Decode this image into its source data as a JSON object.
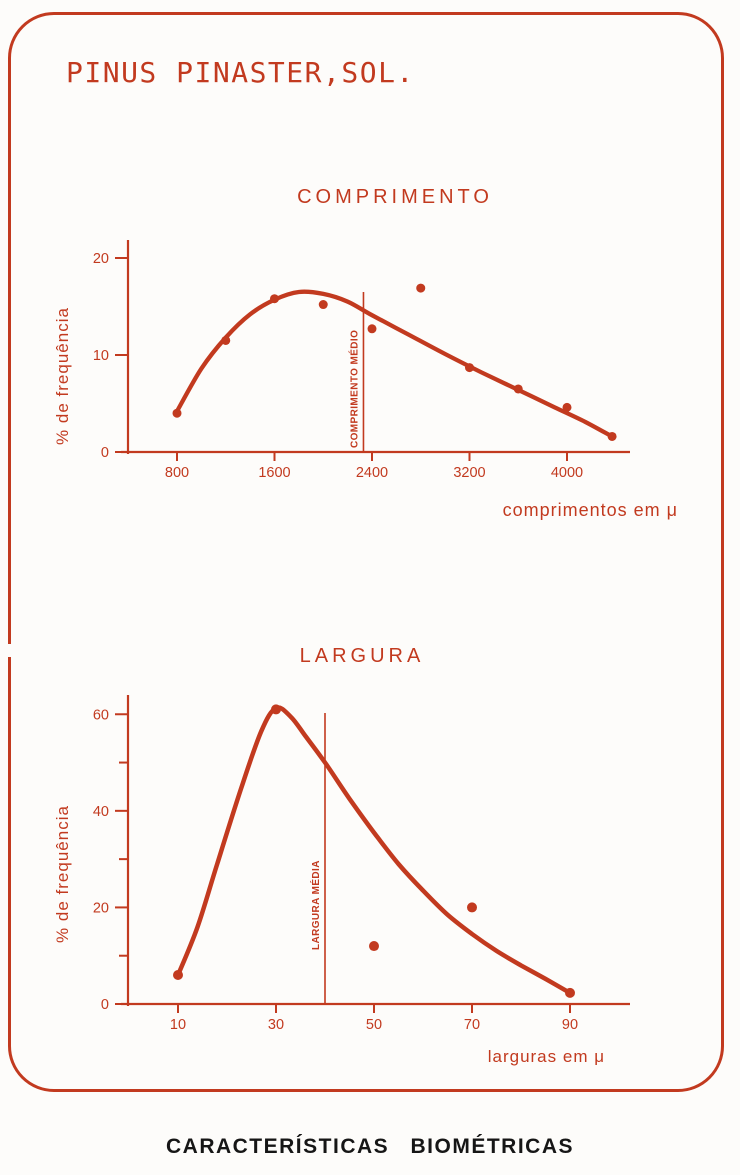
{
  "page": {
    "title": "PINUS PINASTER,SOL.",
    "caption": "CARACTERÍSTICAS BIOMÉTRICAS",
    "ink_color": "#c23a1f",
    "caption_color": "#161616",
    "background": "#fdfcfa"
  },
  "chart_data": [
    {
      "type": "scatter",
      "title": "COMPRIMENTO",
      "xlabel": "comprimentos em μ",
      "ylabel": "% de frequência",
      "x_ticks": [
        800,
        1600,
        2400,
        3200,
        4000
      ],
      "y_ticks": [
        0,
        10,
        20
      ],
      "y_minor_ticks": [],
      "xlim": [
        340,
        4520
      ],
      "ylim": [
        0,
        22
      ],
      "grid": false,
      "legend": false,
      "points": [
        [
          800,
          4.0
        ],
        [
          1200,
          11.5
        ],
        [
          1600,
          15.8
        ],
        [
          2000,
          15.2
        ],
        [
          2400,
          12.7
        ],
        [
          2800,
          16.9
        ],
        [
          3200,
          8.7
        ],
        [
          3600,
          6.5
        ],
        [
          4000,
          4.6
        ],
        [
          4370,
          1.6
        ]
      ],
      "curve_fit": [
        [
          800,
          4.2
        ],
        [
          1000,
          8.6
        ],
        [
          1200,
          11.8
        ],
        [
          1400,
          14.2
        ],
        [
          1600,
          15.7
        ],
        [
          1800,
          16.5
        ],
        [
          2000,
          16.3
        ],
        [
          2200,
          15.5
        ],
        [
          2400,
          14.1
        ],
        [
          2700,
          12.1
        ],
        [
          3000,
          10.1
        ],
        [
          3300,
          8.2
        ],
        [
          3600,
          6.4
        ],
        [
          3900,
          4.6
        ],
        [
          4150,
          3.1
        ],
        [
          4370,
          1.6
        ]
      ],
      "mean_line": {
        "label": "COMPRIMENTO MÉDIO",
        "x": 2330
      }
    },
    {
      "type": "scatter",
      "title": "LARGURA",
      "xlabel": "larguras em μ",
      "ylabel": "% de frequência",
      "x_ticks": [
        10,
        30,
        50,
        70,
        90
      ],
      "y_ticks": [
        0,
        20,
        40,
        60
      ],
      "y_minor_ticks": [
        10,
        30,
        50
      ],
      "xlim": [
        0,
        102
      ],
      "ylim": [
        0,
        64
      ],
      "grid": false,
      "legend": false,
      "points": [
        [
          10,
          6
        ],
        [
          30,
          61
        ],
        [
          50,
          12
        ],
        [
          70,
          20
        ],
        [
          90,
          2.3
        ]
      ],
      "curve_fit": [
        [
          10,
          6
        ],
        [
          14,
          16
        ],
        [
          18,
          29
        ],
        [
          23,
          45
        ],
        [
          27,
          56.5
        ],
        [
          30,
          61.3
        ],
        [
          33,
          59.5
        ],
        [
          36,
          55.5
        ],
        [
          40,
          50
        ],
        [
          45,
          42.5
        ],
        [
          50,
          35.5
        ],
        [
          55,
          29
        ],
        [
          60,
          23.5
        ],
        [
          65,
          18.5
        ],
        [
          70,
          14.5
        ],
        [
          75,
          11
        ],
        [
          80,
          8
        ],
        [
          85,
          5.2
        ],
        [
          90,
          2.3
        ]
      ],
      "mean_line": {
        "label": "LARGURA MÉDIA",
        "x": 40
      }
    }
  ]
}
